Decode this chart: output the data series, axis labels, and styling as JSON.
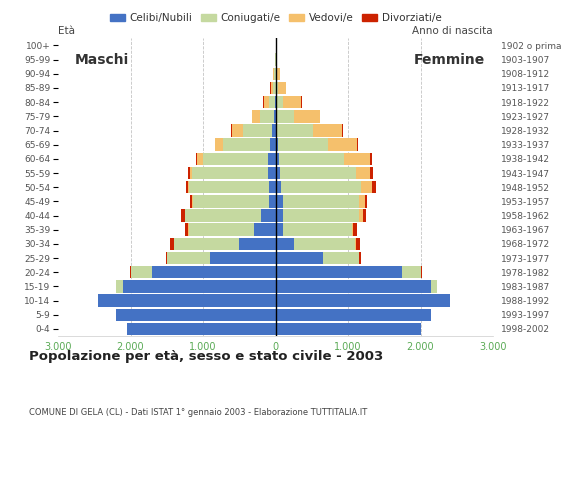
{
  "age_groups": [
    "0-4",
    "5-9",
    "10-14",
    "15-19",
    "20-24",
    "25-29",
    "30-34",
    "35-39",
    "40-44",
    "45-49",
    "50-54",
    "55-59",
    "60-64",
    "65-69",
    "70-74",
    "75-79",
    "80-84",
    "85-89",
    "90-94",
    "95-99",
    "100+"
  ],
  "birth_years": [
    "1998-2002",
    "1993-1997",
    "1988-1992",
    "1983-1987",
    "1978-1982",
    "1973-1977",
    "1968-1972",
    "1963-1967",
    "1958-1962",
    "1953-1957",
    "1948-1952",
    "1943-1947",
    "1938-1942",
    "1933-1937",
    "1928-1932",
    "1923-1927",
    "1918-1922",
    "1913-1917",
    "1908-1912",
    "1903-1907",
    "1902 o prima"
  ],
  "male": {
    "celibe": [
      2050,
      2200,
      2450,
      2100,
      1700,
      900,
      500,
      300,
      200,
      90,
      90,
      100,
      100,
      80,
      50,
      20,
      5,
      0,
      0,
      0,
      0
    ],
    "coniugato": [
      0,
      0,
      5,
      100,
      300,
      600,
      900,
      900,
      1050,
      1050,
      1100,
      1050,
      900,
      650,
      400,
      200,
      80,
      35,
      15,
      5,
      0
    ],
    "vedovo": [
      0,
      0,
      0,
      0,
      0,
      0,
      5,
      5,
      5,
      10,
      15,
      30,
      80,
      100,
      150,
      100,
      80,
      30,
      15,
      5,
      0
    ],
    "divorziato": [
      0,
      0,
      0,
      0,
      5,
      15,
      50,
      50,
      50,
      30,
      30,
      30,
      10,
      10,
      10,
      5,
      5,
      5,
      0,
      0,
      0
    ]
  },
  "female": {
    "celibe": [
      2000,
      2150,
      2400,
      2150,
      1750,
      650,
      250,
      100,
      100,
      100,
      80,
      60,
      50,
      30,
      20,
      10,
      5,
      0,
      0,
      0,
      0
    ],
    "coniugato": [
      0,
      0,
      5,
      80,
      250,
      500,
      850,
      950,
      1050,
      1050,
      1100,
      1050,
      900,
      700,
      500,
      250,
      100,
      40,
      15,
      5,
      0
    ],
    "vedovo": [
      0,
      0,
      0,
      0,
      5,
      5,
      15,
      20,
      50,
      80,
      150,
      200,
      350,
      400,
      400,
      350,
      250,
      100,
      50,
      20,
      5
    ],
    "divorziato": [
      0,
      0,
      0,
      0,
      10,
      30,
      50,
      50,
      50,
      30,
      50,
      30,
      30,
      10,
      10,
      5,
      5,
      5,
      0,
      0,
      0
    ]
  },
  "colors": {
    "celibe": "#4472C4",
    "coniugato": "#C5D9A0",
    "vedovo": "#F5C06C",
    "divorziato": "#CC2200"
  },
  "legend_labels": [
    "Celibi/Nubili",
    "Coniugati/e",
    "Vedovi/e",
    "Divorziati/e"
  ],
  "title": "Popolazione per età, sesso e stato civile - 2003",
  "subtitle": "COMUNE DI GELA (CL) - Dati ISTAT 1° gennaio 2003 - Elaborazione TUTTITALIA.IT",
  "xlabel_left": "Maschi",
  "xlabel_right": "Femmine",
  "ylabel_left": "Età",
  "ylabel_right": "Anno di nascita",
  "xlim": 3000,
  "xtick_labels": [
    "3.000",
    "2.000",
    "1.000",
    "0",
    "1.000",
    "2.000",
    "3.000"
  ],
  "bg_color": "#FFFFFF",
  "grid_color": "#AAAAAA"
}
